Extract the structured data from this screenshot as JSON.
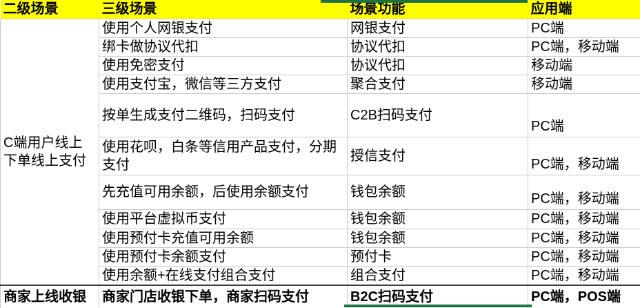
{
  "colors": {
    "header_bg": "#FFFF00",
    "accent_green": "#1E7145",
    "gridline": "#C9C9C9"
  },
  "table": {
    "columns": [
      "二级场景",
      "三级场景",
      "场景功能",
      "应用端"
    ],
    "merged_cell": {
      "text": "C端用户线上下单线上支付"
    },
    "rows": [
      {
        "scene": "使用个人网银支付",
        "func": "网银支付",
        "client": "PC端"
      },
      {
        "scene": "绑卡做协议代扣",
        "func": "协议代扣",
        "client": "PC端，移动端"
      },
      {
        "scene": "使用免密支付",
        "func": "协议代扣",
        "client": "移动端"
      },
      {
        "scene": "使用支付宝，微信等三方支付",
        "func": "聚合支付",
        "client": "移动端"
      },
      {
        "scene": "按单生成支付二维码，扫码支付",
        "func": "C2B扫码支付",
        "client": "PC端"
      },
      {
        "scene": "使用花呗，白条等信用产品支付，分期支付",
        "func": "授信支付",
        "client": "PC端，移动端"
      },
      {
        "scene": "先充值可用余额，后使用余额支付",
        "func": "钱包余额",
        "client": "PC端，移动端"
      },
      {
        "scene": "使用平台虚拟币支付",
        "func": "钱包余额",
        "client": "PC端，移动端"
      },
      {
        "scene": "使用预付卡充值可用余额",
        "func": "钱包余额",
        "client": "PC端，移动端"
      },
      {
        "scene": "使用预付卡余额支付",
        "func": "预付卡",
        "client": "PC端，移动端"
      },
      {
        "scene": "使用余额+在线支付组合支付",
        "func": "组合支付",
        "client": "PC端，移动端"
      }
    ],
    "footer_row": {
      "category": "商家上线收银",
      "scene": "商家门店收银下单，商家扫码支付",
      "func": "B2C扫码支付",
      "client": "PC端，POS端"
    }
  }
}
